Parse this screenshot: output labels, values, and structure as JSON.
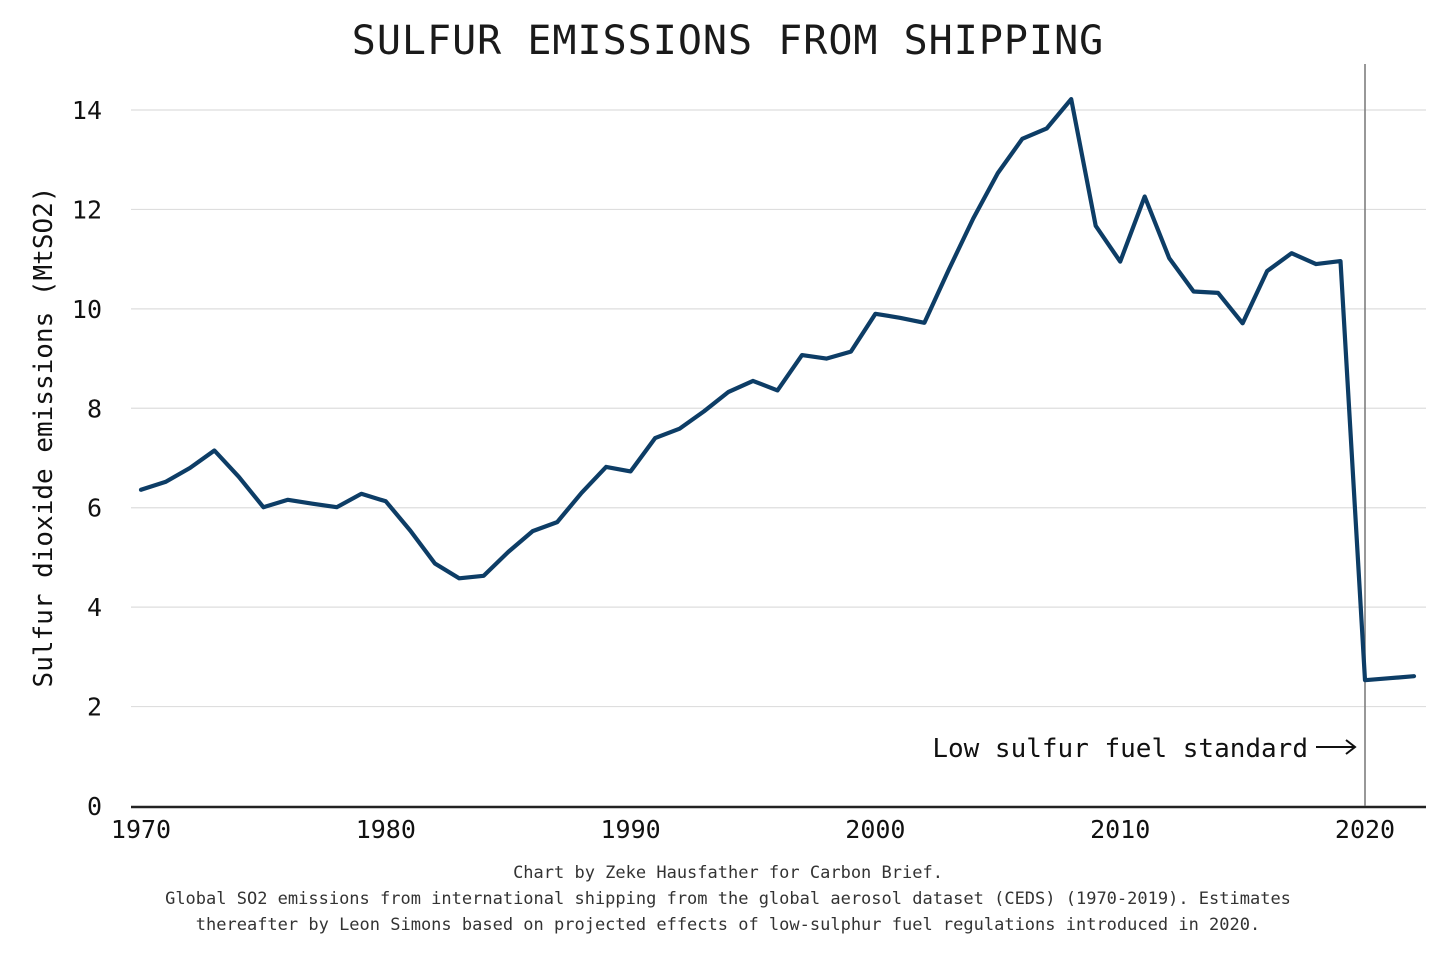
{
  "chart_data": {
    "type": "line",
    "title": "SULFUR EMISSIONS FROM SHIPPING",
    "xlabel": "",
    "ylabel": "Sulfur dioxide emissions (MtSO2)",
    "xlim": [
      1970,
      2022
    ],
    "ylim": [
      0,
      14.5
    ],
    "x_ticks": [
      1970,
      1980,
      1990,
      2000,
      2010,
      2020
    ],
    "y_ticks": [
      0,
      2,
      4,
      6,
      8,
      10,
      12,
      14
    ],
    "grid": "horizontal",
    "series": [
      {
        "color": "#0d3d66",
        "x": [
          1970,
          1971,
          1972,
          1973,
          1974,
          1975,
          1976,
          1977,
          1978,
          1979,
          1980,
          1981,
          1982,
          1983,
          1984,
          1985,
          1986,
          1987,
          1988,
          1989,
          1990,
          1991,
          1992,
          1993,
          1994,
          1995,
          1996,
          1997,
          1998,
          1999,
          2000,
          2001,
          2002,
          2003,
          2004,
          2005,
          2006,
          2007,
          2008,
          2009,
          2010,
          2011,
          2012,
          2013,
          2014,
          2015,
          2016,
          2017,
          2018,
          2019,
          2020,
          2021,
          2022
        ],
        "y": [
          6.36,
          6.52,
          6.8,
          7.15,
          6.62,
          6.01,
          6.16,
          6.08,
          6.01,
          6.28,
          6.13,
          5.54,
          4.88,
          4.58,
          4.63,
          5.11,
          5.53,
          5.71,
          6.3,
          6.82,
          6.73,
          7.4,
          7.59,
          7.94,
          8.33,
          8.55,
          8.36,
          9.07,
          9.0,
          9.14,
          9.9,
          9.82,
          9.72,
          10.79,
          11.82,
          12.73,
          13.42,
          13.63,
          14.22,
          11.67,
          10.95,
          12.26,
          11.02,
          10.35,
          10.32,
          9.71,
          10.76,
          11.12,
          10.9,
          10.96,
          2.53,
          2.57,
          2.61
        ]
      }
    ],
    "annotations": [
      {
        "text": "Low sulfur fuel standard",
        "x": 2020
      }
    ]
  },
  "footer": {
    "line1": "Chart by Zeke Hausfather for Carbon Brief.",
    "line2": "Global SO2 emissions from international shipping from the global aerosol dataset (CEDS) (1970-2019). Estimates",
    "line3": "thereafter by Leon Simons based on projected effects of low-sulphur fuel regulations introduced in 2020."
  }
}
